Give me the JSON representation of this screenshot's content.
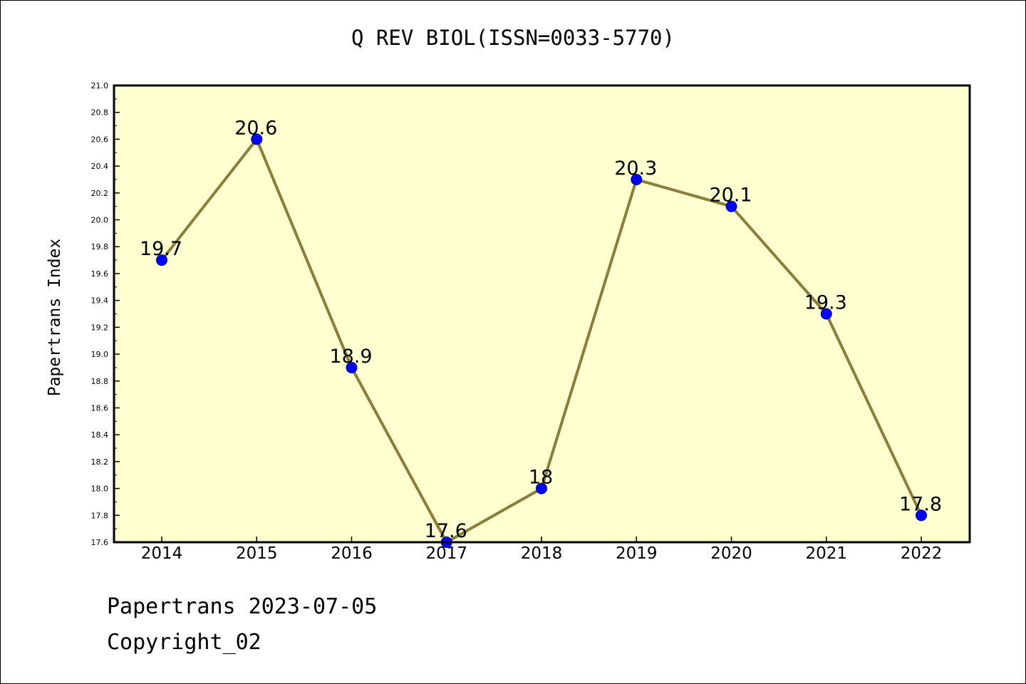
{
  "title": "Q REV BIOL(ISSN=0033-5770)",
  "footer": {
    "date_line": "Papertrans 2023-07-05",
    "copyright_line": "Copyright_02"
  },
  "colors": {
    "plot_background": "#ffffd0",
    "line": "#8b7d3a",
    "marker": "#0000ff",
    "axis": "#000000"
  },
  "chart_data": {
    "type": "line",
    "title": "Q REV BIOL(ISSN=0033-5770)",
    "xlabel": "",
    "ylabel": "Papertrans Index",
    "categories": [
      "2014",
      "2015",
      "2016",
      "2017",
      "2018",
      "2019",
      "2020",
      "2021",
      "2022"
    ],
    "values": [
      19.7,
      20.6,
      18.9,
      17.6,
      18.0,
      20.3,
      20.1,
      19.3,
      17.8
    ],
    "data_labels": [
      "19.7",
      "20.6",
      "18.9",
      "17.6",
      "18",
      "20.3",
      "20.1",
      "19.3",
      "17.8"
    ],
    "ylim": [
      17.6,
      21.0
    ],
    "y_ticks": [
      "17.6",
      "17.8",
      "18.0",
      "18.2",
      "18.4",
      "18.6",
      "18.8",
      "19.0",
      "19.2",
      "19.4",
      "19.6",
      "19.8",
      "20.0",
      "20.2",
      "20.4",
      "20.6",
      "20.8",
      "21.0"
    ],
    "grid": false,
    "legend": "none"
  }
}
